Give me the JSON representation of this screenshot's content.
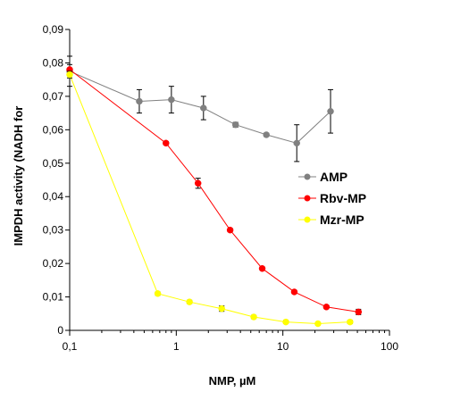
{
  "chart_data": {
    "type": "line",
    "title": "",
    "xlabel": "NMP, µM",
    "ylabel": "IMPDH activity (NADH for",
    "x_scale": "log",
    "xlim": [
      0.1,
      100
    ],
    "ylim": [
      0,
      0.09
    ],
    "x_ticks": [
      0.1,
      1,
      10,
      100
    ],
    "x_tick_labels": [
      "0,1",
      "1",
      "10",
      "100"
    ],
    "y_ticks": [
      0,
      0.01,
      0.02,
      0.03,
      0.04,
      0.05,
      0.06,
      0.07,
      0.08,
      0.09
    ],
    "y_tick_labels": [
      "0",
      "0,01",
      "0,02",
      "0,03",
      "0,04",
      "0,05",
      "0,06",
      "0,07",
      "0,08",
      "0,09"
    ],
    "grid": false,
    "legend_position": "right",
    "series": [
      {
        "name": "AMP",
        "color": "#808080",
        "x": [
          0.1,
          0.45,
          0.9,
          1.8,
          3.6,
          7,
          13.5,
          28
        ],
        "y": [
          0.0775,
          0.0685,
          0.069,
          0.0665,
          0.0615,
          0.0585,
          0.056,
          0.0655
        ],
        "err": [
          0.0045,
          0.0035,
          0.004,
          0.0035,
          0.0007,
          0.0005,
          0.0055,
          0.0065
        ]
      },
      {
        "name": "Rbv-MP",
        "color": "#ff0000",
        "x": [
          0.1,
          0.8,
          1.6,
          3.2,
          6.4,
          12.8,
          25.6,
          51.2
        ],
        "y": [
          0.078,
          0.056,
          0.044,
          0.03,
          0.0185,
          0.0115,
          0.007,
          0.0055
        ],
        "err": [
          0.0015,
          0.0005,
          0.0015,
          0.0005,
          0.0005,
          0.0005,
          0.0005,
          0.0008
        ]
      },
      {
        "name": "Mzr-MP",
        "color": "#ffff00",
        "x": [
          0.1,
          0.67,
          1.33,
          2.67,
          5.33,
          10.67,
          21.33,
          42.67
        ],
        "y": [
          0.0765,
          0.011,
          0.0085,
          0.0065,
          0.004,
          0.0025,
          0.002,
          0.0025
        ],
        "err": [
          0.001,
          0.0005,
          0.0005,
          0.0008,
          0.0005,
          0.0005,
          0.0004,
          0.0005
        ]
      }
    ]
  }
}
